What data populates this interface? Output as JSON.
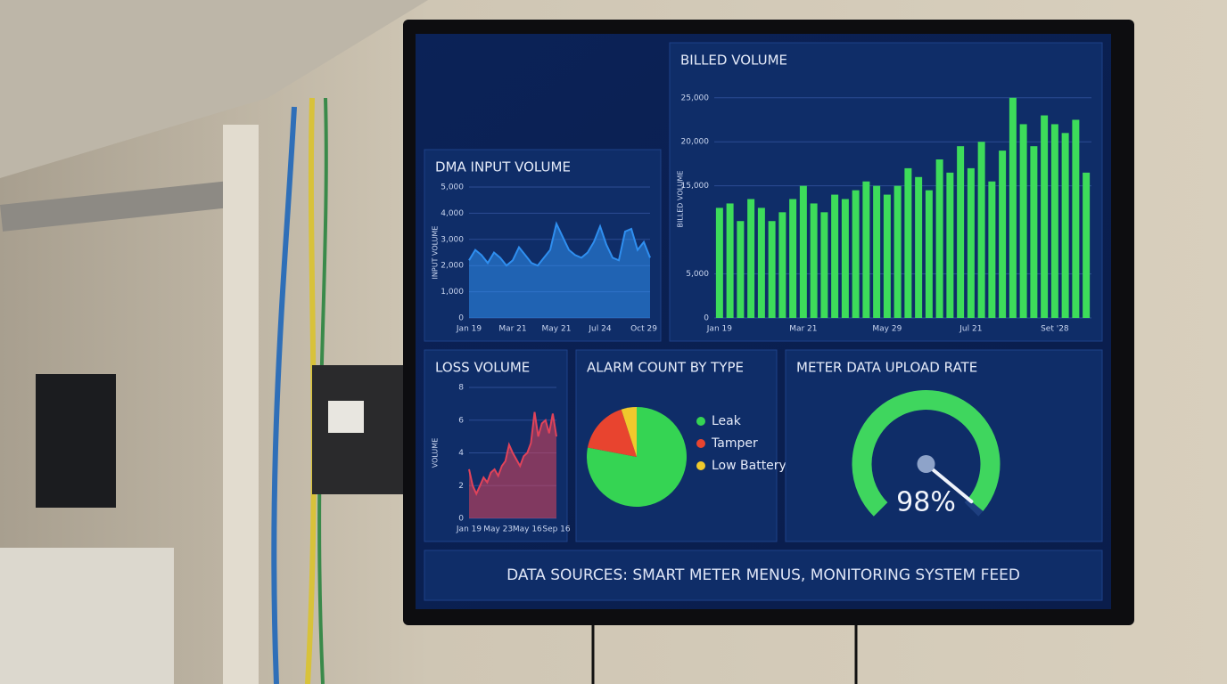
{
  "chart_data": [
    {
      "type": "area",
      "title": "DMA INPUT VOLUME",
      "y_label": "INPUT VOLUME",
      "color": "#2f8ff0",
      "categories": [
        "Jan 19",
        null,
        null,
        null,
        null,
        null,
        null,
        "Mar 21",
        null,
        null,
        null,
        null,
        null,
        null,
        "May 21",
        null,
        null,
        null,
        null,
        null,
        null,
        "Jul 24",
        null,
        null,
        null,
        null,
        null,
        null,
        "Oct 29",
        null
      ],
      "values": [
        2200,
        2600,
        2400,
        2100,
        2500,
        2300,
        2000,
        2200,
        2700,
        2400,
        2100,
        2000,
        2300,
        2600,
        3600,
        3100,
        2600,
        2400,
        2300,
        2500,
        2900,
        3500,
        2800,
        2300,
        2200,
        3300,
        3400,
        2600,
        2900,
        2300
      ],
      "ylim": [
        0,
        5000
      ],
      "yticks": [
        0,
        {
          "value": 1000,
          "label": "1,000"
        },
        {
          "value": 2000,
          "label": "2,000"
        },
        {
          "value": 3000,
          "label": "3,000"
        },
        {
          "value": 4000,
          "label": "4,000"
        },
        {
          "value": 5000,
          "label": "5,000"
        }
      ],
      "grid": true
    },
    {
      "type": "bar",
      "title": "BILLED VOLUME",
      "y_label": "BILLED VOLUME",
      "color": "#3ddc5a",
      "categories": [
        "Jan 19",
        null,
        null,
        null,
        null,
        null,
        null,
        null,
        "Mar 21",
        null,
        null,
        null,
        null,
        null,
        null,
        null,
        "May 29",
        null,
        null,
        null,
        null,
        null,
        null,
        null,
        "Jul 21",
        null,
        null,
        null,
        null,
        null,
        null,
        null,
        "Set '28",
        null,
        null,
        null
      ],
      "values": [
        12500,
        13000,
        11000,
        13500,
        12500,
        11000,
        12000,
        13500,
        15000,
        13000,
        12000,
        14000,
        13500,
        14500,
        15500,
        15000,
        14000,
        15000,
        17000,
        16000,
        14500,
        18000,
        16500,
        19500,
        17000,
        20000,
        15500,
        19000,
        25000,
        22000,
        19500,
        23000,
        22000,
        21000,
        22500,
        16500
      ],
      "ylim": [
        0,
        27000
      ],
      "yticks": [
        0,
        {
          "value": 5000,
          "label": "5,000"
        },
        {
          "value": 15000,
          "label": "15,000"
        },
        {
          "value": 20000,
          "label": "20,000"
        },
        {
          "value": 25000,
          "label": "25,000"
        }
      ],
      "grid": true
    },
    {
      "type": "area",
      "title": "LOSS VOLUME",
      "y_label": "VOLUME",
      "color": "#e0435a",
      "categories": [
        "Jan 19",
        null,
        null,
        null,
        null,
        null,
        null,
        null,
        "May 23",
        null,
        null,
        null,
        null,
        null,
        null,
        null,
        "May 16",
        null,
        null,
        null,
        null,
        null,
        null,
        null,
        "Sep 16"
      ],
      "values": [
        3,
        2,
        1.5,
        2,
        2.5,
        2.2,
        2.8,
        3,
        2.6,
        3.2,
        3.5,
        4.5,
        4,
        3.6,
        3.2,
        3.8,
        4,
        4.6,
        6.5,
        5,
        5.8,
        6,
        5.2,
        6.4,
        5
      ],
      "ylim": [
        0,
        8
      ],
      "yticks": [
        0,
        2,
        4,
        6,
        8
      ],
      "grid": true
    },
    {
      "type": "pie",
      "title": "ALARM COUNT BY TYPE",
      "categories": [
        "Leak",
        "Tamper",
        "Low Battery"
      ],
      "values": [
        78,
        17,
        5
      ],
      "colors": [
        "#35d453",
        "#e8442f",
        "#f0c92c"
      ]
    },
    {
      "type": "gauge",
      "title": "METER DATA UPLOAD RATE",
      "color": "#3fd65e",
      "values": [
        98
      ],
      "value_labels": [
        "98%"
      ],
      "ylim": [
        0,
        100
      ]
    }
  ],
  "footer": "DATA SOURCES: SMART METER MENUS, MONITORING SYSTEM FEED"
}
